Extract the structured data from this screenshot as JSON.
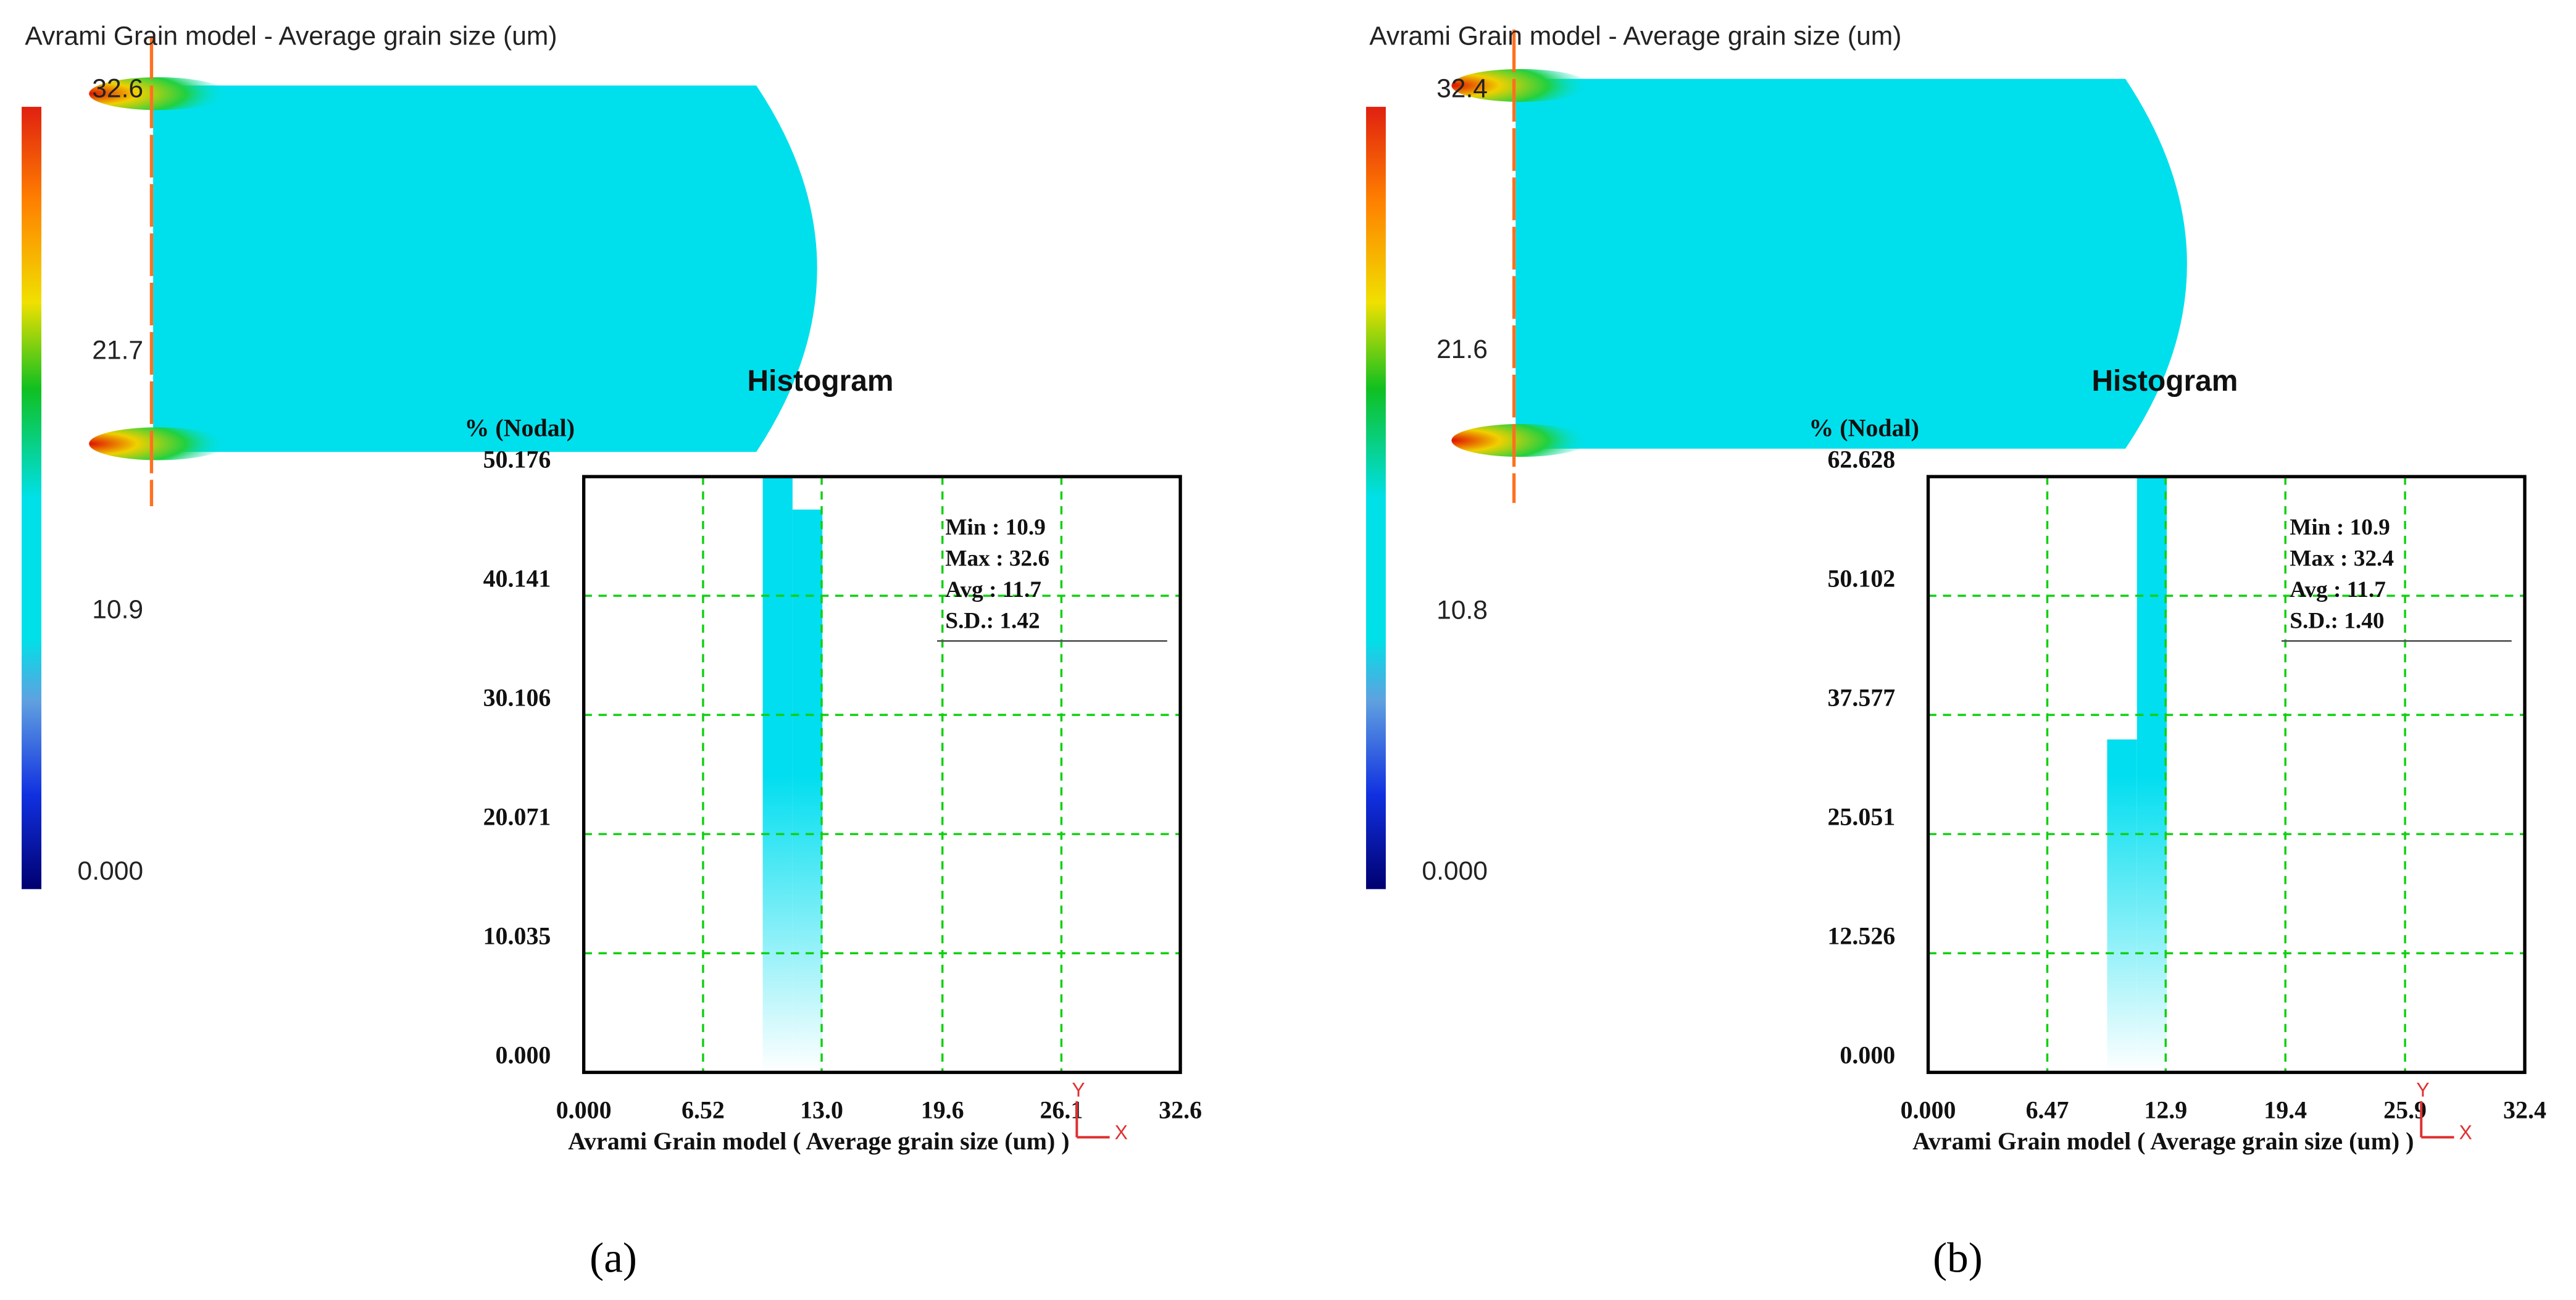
{
  "chart_data": [
    {
      "type": "histogram",
      "title": "Avrami Grain model - Average grain size (um)",
      "colorbar": {
        "lim": [
          0,
          32.6
        ],
        "ticks": [
          32.6,
          21.7,
          10.9,
          {
            "value": 0,
            "label": "0.000"
          }
        ]
      },
      "histogram_title": "Histogram",
      "ylabel": "% (Nodal)",
      "xlabel": "Avrami Grain model ( Average grain size (um) )",
      "bins": [
        0,
        1.63,
        3.26,
        4.89,
        6.52,
        8.15,
        9.78,
        11.41,
        13.04,
        14.67,
        16.3,
        17.93,
        19.56,
        21.19,
        22.82,
        24.45,
        26.08,
        27.71,
        29.34,
        30.97,
        32.6
      ],
      "values": [
        0,
        0,
        0,
        0,
        0,
        0,
        50.1,
        47.4,
        0.3,
        0.2,
        0.1,
        0.2,
        0.1,
        0.1,
        0.1,
        0.05,
        0.1,
        0.1,
        0.05,
        0.1
      ],
      "color": "#00def0",
      "xlim": [
        0,
        32.6
      ],
      "xticks": [
        {
          "value": 0,
          "label": "0.000"
        },
        6.52,
        {
          "value": 13,
          "label": "13.0"
        },
        19.6,
        26.1,
        32.6
      ],
      "ylim": [
        0,
        50.176
      ],
      "yticks": [
        50.176,
        40.141,
        30.106,
        20.071,
        10.035,
        {
          "value": 0,
          "label": "0.000"
        }
      ],
      "grid": true,
      "stats": [
        "Min : 10.9",
        "Max : 32.6",
        "Avg : 11.7",
        "S.D.: 1.42"
      ],
      "axis_triad": [
        "Y",
        "X"
      ],
      "caption": "(a)"
    },
    {
      "type": "histogram",
      "title": "Avrami Grain model - Average grain size (um)",
      "colorbar": {
        "lim": [
          0,
          32.4
        ],
        "ticks": [
          32.4,
          21.6,
          10.8,
          {
            "value": 0,
            "label": "0.000"
          }
        ]
      },
      "histogram_title": "Histogram",
      "ylabel": "% (Nodal)",
      "xlabel": "Avrami Grain model ( Average grain size (um) )",
      "bins": [
        0,
        1.62,
        3.24,
        4.86,
        6.48,
        8.1,
        9.72,
        11.34,
        12.96,
        14.58,
        16.2,
        17.82,
        19.44,
        21.06,
        22.68,
        24.3,
        25.92,
        27.54,
        29.16,
        30.78,
        32.4
      ],
      "values": [
        0,
        0,
        0,
        0,
        0,
        0,
        35.0,
        62.5,
        0.3,
        0.2,
        0.1,
        0.2,
        0.1,
        0.1,
        0.1,
        0.05,
        0.1,
        0.1,
        0.05,
        0.1
      ],
      "color": "#00def0",
      "xlim": [
        0,
        32.4
      ],
      "xticks": [
        {
          "value": 0,
          "label": "0.000"
        },
        6.47,
        12.9,
        19.4,
        25.9,
        32.4
      ],
      "ylim": [
        0,
        62.628
      ],
      "yticks": [
        62.628,
        50.102,
        37.577,
        25.051,
        12.526,
        {
          "value": 0,
          "label": "0.000"
        }
      ],
      "grid": true,
      "stats": [
        "Min : 10.9",
        "Max : 32.4",
        "Avg : 11.7",
        "S.D.: 1.40"
      ],
      "axis_triad": [
        "Y",
        "X"
      ],
      "caption": "(b)"
    }
  ]
}
